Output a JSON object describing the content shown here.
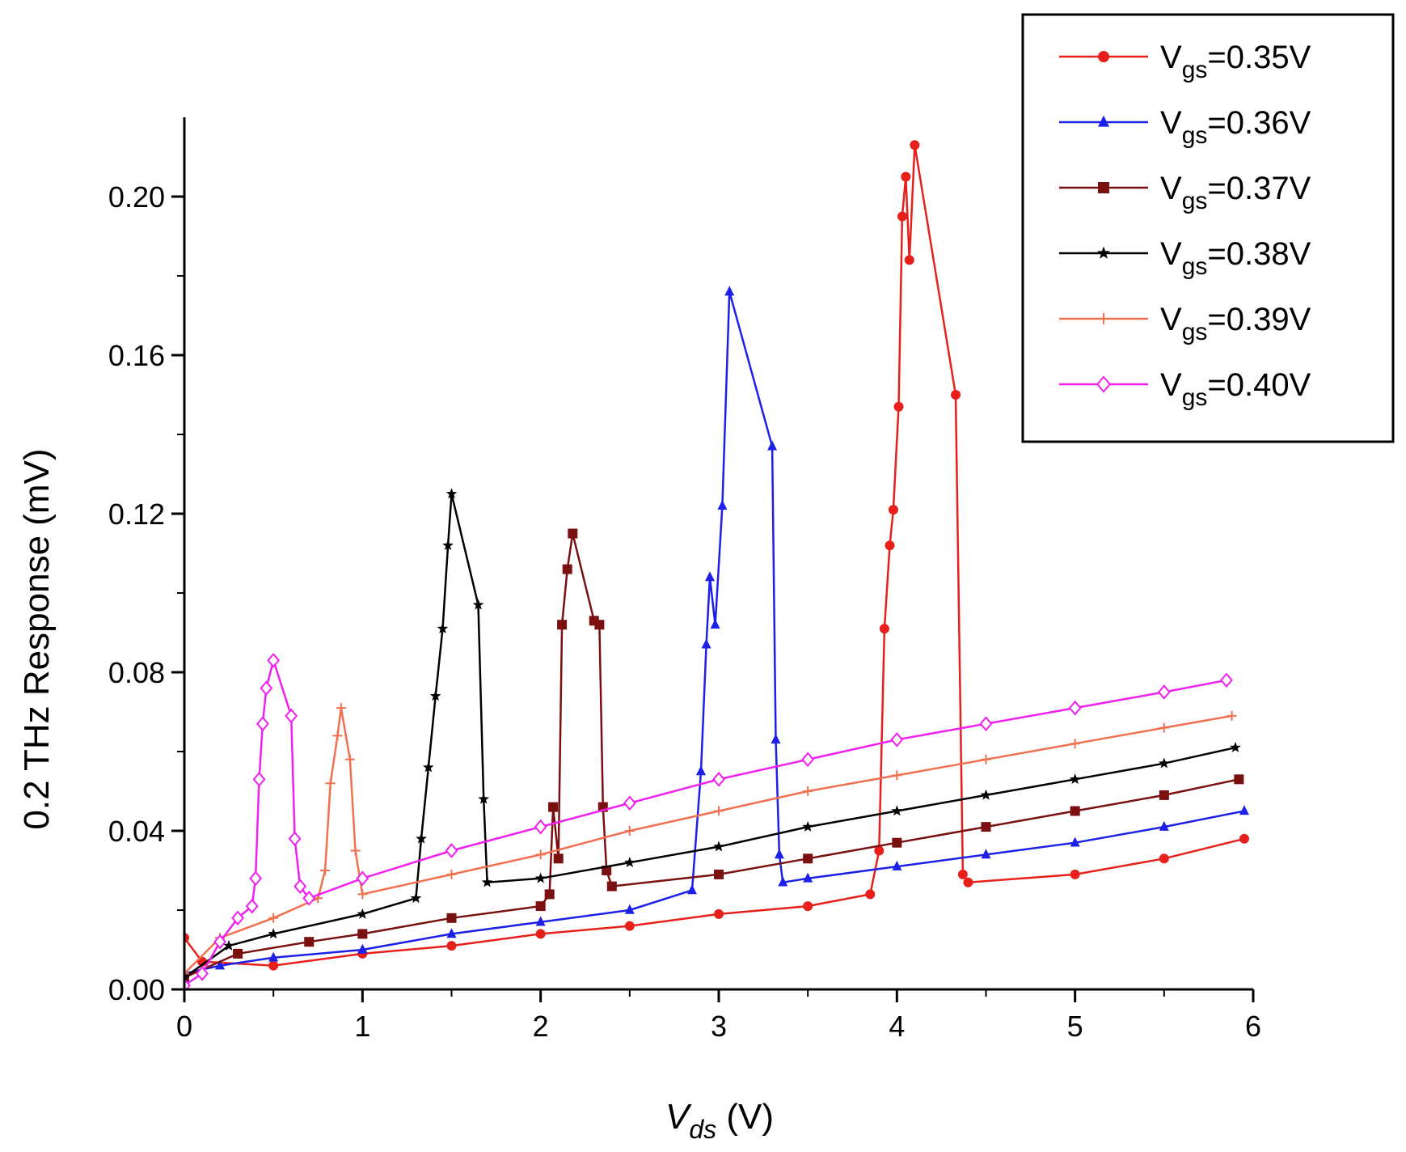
{
  "chart_data": {
    "type": "line",
    "title": "",
    "xlabel_main": "V",
    "xlabel_sub": "ds",
    "xlabel_unit": " (V)",
    "ylabel": "0.2 THz Response (mV)",
    "xlim": [
      0,
      6
    ],
    "ylim": [
      0,
      0.22
    ],
    "x_ticks": [
      "0",
      "1",
      "2",
      "3",
      "4",
      "5",
      "6"
    ],
    "y_ticks": [
      "0.00",
      "0.04",
      "0.08",
      "0.12",
      "0.16",
      "0.20"
    ],
    "legend_position": "top-right",
    "series": [
      {
        "name": "Vgs=0.35V",
        "legend_main": "V",
        "legend_sub": "gs",
        "legend_value": "=0.35V",
        "color": "#e8201c",
        "marker": "circle",
        "x": [
          0.0,
          0.1,
          0.5,
          1.0,
          1.5,
          2.0,
          2.5,
          3.0,
          3.5,
          3.85,
          3.9,
          3.93,
          3.96,
          3.98,
          4.01,
          4.03,
          4.05,
          4.07,
          4.1,
          4.33,
          4.37,
          4.4,
          5.0,
          5.5,
          5.95
        ],
        "y": [
          0.013,
          0.007,
          0.006,
          0.009,
          0.011,
          0.014,
          0.016,
          0.019,
          0.021,
          0.024,
          0.035,
          0.091,
          0.112,
          0.121,
          0.147,
          0.195,
          0.205,
          0.184,
          0.213,
          0.15,
          0.029,
          0.027,
          0.029,
          0.033,
          0.038
        ]
      },
      {
        "name": "Vgs=0.36V",
        "legend_main": "V",
        "legend_sub": "gs",
        "legend_value": "=0.36V",
        "color": "#1c20e8",
        "marker": "triangle",
        "x": [
          0.0,
          0.2,
          0.5,
          1.0,
          1.5,
          2.0,
          2.5,
          2.85,
          2.9,
          2.93,
          2.95,
          2.98,
          3.02,
          3.06,
          3.3,
          3.32,
          3.34,
          3.36,
          3.5,
          4.0,
          4.5,
          5.0,
          5.5,
          5.95
        ],
        "y": [
          0.004,
          0.006,
          0.008,
          0.01,
          0.014,
          0.017,
          0.02,
          0.025,
          0.055,
          0.087,
          0.104,
          0.092,
          0.122,
          0.176,
          0.137,
          0.063,
          0.034,
          0.027,
          0.028,
          0.031,
          0.034,
          0.037,
          0.041,
          0.045
        ]
      },
      {
        "name": "Vgs=0.37V",
        "legend_main": "V",
        "legend_sub": "gs",
        "legend_value": "=0.37V",
        "color": "#7a1010",
        "marker": "square",
        "x": [
          0.0,
          0.3,
          0.7,
          1.0,
          1.5,
          2.0,
          2.05,
          2.07,
          2.1,
          2.12,
          2.15,
          2.18,
          2.3,
          2.33,
          2.35,
          2.37,
          2.4,
          3.0,
          3.5,
          4.0,
          4.5,
          5.0,
          5.5,
          5.92
        ],
        "y": [
          0.003,
          0.009,
          0.012,
          0.014,
          0.018,
          0.021,
          0.024,
          0.046,
          0.033,
          0.092,
          0.106,
          0.115,
          0.093,
          0.092,
          0.046,
          0.03,
          0.026,
          0.029,
          0.033,
          0.037,
          0.041,
          0.045,
          0.049,
          0.053
        ]
      },
      {
        "name": "Vgs=0.38V",
        "legend_main": "V",
        "legend_sub": "gs",
        "legend_value": "=0.38V",
        "color": "#000000",
        "marker": "star",
        "x": [
          0.0,
          0.25,
          0.5,
          1.0,
          1.3,
          1.33,
          1.37,
          1.41,
          1.45,
          1.48,
          1.5,
          1.65,
          1.68,
          1.7,
          2.0,
          2.5,
          3.0,
          3.5,
          4.0,
          4.5,
          5.0,
          5.5,
          5.9
        ],
        "y": [
          0.003,
          0.011,
          0.014,
          0.019,
          0.023,
          0.038,
          0.056,
          0.074,
          0.091,
          0.112,
          0.125,
          0.097,
          0.048,
          0.027,
          0.028,
          0.032,
          0.036,
          0.041,
          0.045,
          0.049,
          0.053,
          0.057,
          0.061
        ]
      },
      {
        "name": "Vgs=0.39V",
        "legend_main": "V",
        "legend_sub": "gs",
        "legend_value": "=0.39V",
        "color": "#f07050",
        "marker": "plus",
        "x": [
          0.0,
          0.2,
          0.5,
          0.75,
          0.79,
          0.82,
          0.86,
          0.88,
          0.93,
          0.96,
          1.0,
          1.5,
          2.0,
          2.5,
          3.0,
          3.5,
          4.0,
          4.5,
          5.0,
          5.5,
          5.88
        ],
        "y": [
          0.004,
          0.013,
          0.018,
          0.023,
          0.03,
          0.052,
          0.064,
          0.071,
          0.058,
          0.035,
          0.024,
          0.029,
          0.034,
          0.04,
          0.045,
          0.05,
          0.054,
          0.058,
          0.062,
          0.066,
          0.069
        ]
      },
      {
        "name": "Vgs=0.40V",
        "legend_main": "V",
        "legend_sub": "gs",
        "legend_value": "=0.40V",
        "color": "#f020f0",
        "marker": "diamond",
        "x": [
          0.0,
          0.1,
          0.2,
          0.3,
          0.38,
          0.4,
          0.42,
          0.44,
          0.46,
          0.5,
          0.6,
          0.62,
          0.65,
          0.7,
          1.0,
          1.5,
          2.0,
          2.5,
          3.0,
          3.5,
          4.0,
          4.5,
          5.0,
          5.5,
          5.85
        ],
        "y": [
          0.001,
          0.004,
          0.012,
          0.018,
          0.021,
          0.028,
          0.053,
          0.067,
          0.076,
          0.083,
          0.069,
          0.038,
          0.026,
          0.023,
          0.028,
          0.035,
          0.041,
          0.047,
          0.053,
          0.058,
          0.063,
          0.067,
          0.071,
          0.075,
          0.078
        ]
      }
    ]
  }
}
